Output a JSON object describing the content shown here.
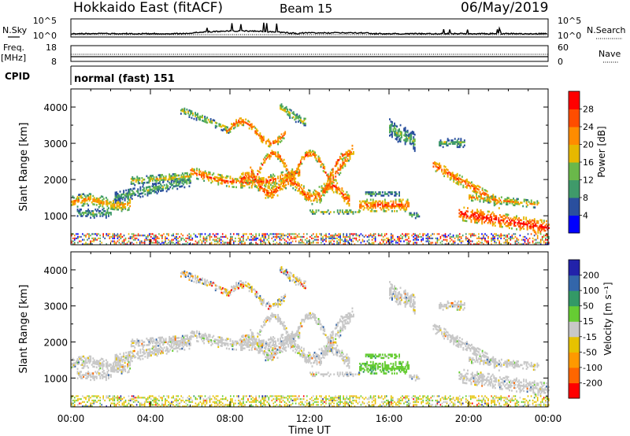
{
  "header": {
    "station": "Hokkaido East (fitACF)",
    "beam": "Beam 15",
    "date": "06/May/2019"
  },
  "labels": {
    "nsky": "N.Sky",
    "nsearch": "N.Search",
    "freq": "Freq.",
    "freq_unit": "[MHz]",
    "nave": "Nave",
    "cpid": "CPID",
    "cpid_value": "normal (fast) 151",
    "slant_range": "Slant Range [km]",
    "time": "Time UT",
    "power_label": "Power [dB]",
    "velocity_label": "Velocity [m s⁻¹]"
  },
  "noise_ticks": {
    "left": [
      "10^5",
      "10^0"
    ],
    "right": [
      "10^5",
      "10^0"
    ]
  },
  "freq_ticks": {
    "left": [
      "18",
      "8"
    ],
    "right": [
      "60",
      "0"
    ]
  },
  "colors": {
    "power_scale": [
      "#0000ff",
      "#2a4f9e",
      "#3f9a6a",
      "#6ab84a",
      "#e6b800",
      "#ff8c00",
      "#ff4d00",
      "#ff0000"
    ],
    "velocity_scale": [
      "#ff0000",
      "#ff6600",
      "#ff9900",
      "#e6c200",
      "#c8c8c8",
      "#66cc33",
      "#339966",
      "#3366aa",
      "#2222aa"
    ],
    "ground_scatter": "#c8c8c8"
  },
  "chart_data": [
    {
      "type": "heatmap",
      "name": "power",
      "xlabel": "Time UT",
      "ylabel": "Slant Range [km]",
      "x_ticks": [
        "00:00",
        "04:00",
        "08:00",
        "12:00",
        "16:00",
        "20:00",
        "00:00"
      ],
      "y_ticks": [
        1000,
        2000,
        3000,
        4000
      ],
      "xlim": [
        0,
        24
      ],
      "ylim": [
        200,
        4500
      ],
      "colorbar": {
        "label": "Power [dB]",
        "ticks": [
          4,
          8,
          12,
          16,
          20,
          24,
          28
        ],
        "range": [
          0,
          32
        ]
      }
    },
    {
      "type": "heatmap",
      "name": "velocity",
      "xlabel": "Time UT",
      "ylabel": "Slant Range [km]",
      "x_ticks": [
        "00:00",
        "04:00",
        "08:00",
        "12:00",
        "16:00",
        "20:00",
        "00:00"
      ],
      "y_ticks": [
        1000,
        2000,
        3000,
        4000
      ],
      "xlim": [
        0,
        24
      ],
      "ylim": [
        200,
        4500
      ],
      "colorbar": {
        "label": "Velocity [m s⁻¹]",
        "ticks": [
          200,
          100,
          50,
          15,
          -15,
          -50,
          -100,
          -200
        ]
      }
    }
  ]
}
